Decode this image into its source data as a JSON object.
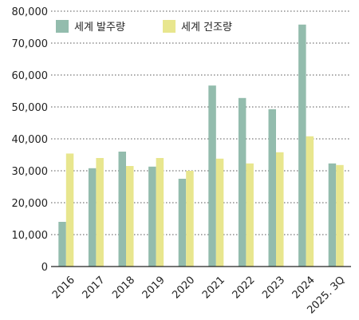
{
  "chart_data": {
    "type": "bar",
    "categories": [
      "2016",
      "2017",
      "2018",
      "2019",
      "2020",
      "2021",
      "2022",
      "2023",
      "2024",
      "2025. 3Q"
    ],
    "series": [
      {
        "name": "세계 발주량",
        "color": "#93bcad",
        "values": [
          14000,
          30800,
          36000,
          31300,
          27500,
          56700,
          52800,
          49300,
          75800,
          32300
        ]
      },
      {
        "name": "세계 건조량",
        "color": "#e8e68e",
        "values": [
          35400,
          34000,
          31500,
          34000,
          30000,
          33800,
          32300,
          35800,
          40800,
          31800
        ]
      }
    ],
    "yticks": [
      "0",
      "10,000",
      "20,000",
      "30,000",
      "40,000",
      "50,000",
      "60,000",
      "70,000",
      "80,000"
    ],
    "ylim": [
      0,
      80000
    ],
    "grid": "horizontal-dotted",
    "legend": "top-left"
  }
}
